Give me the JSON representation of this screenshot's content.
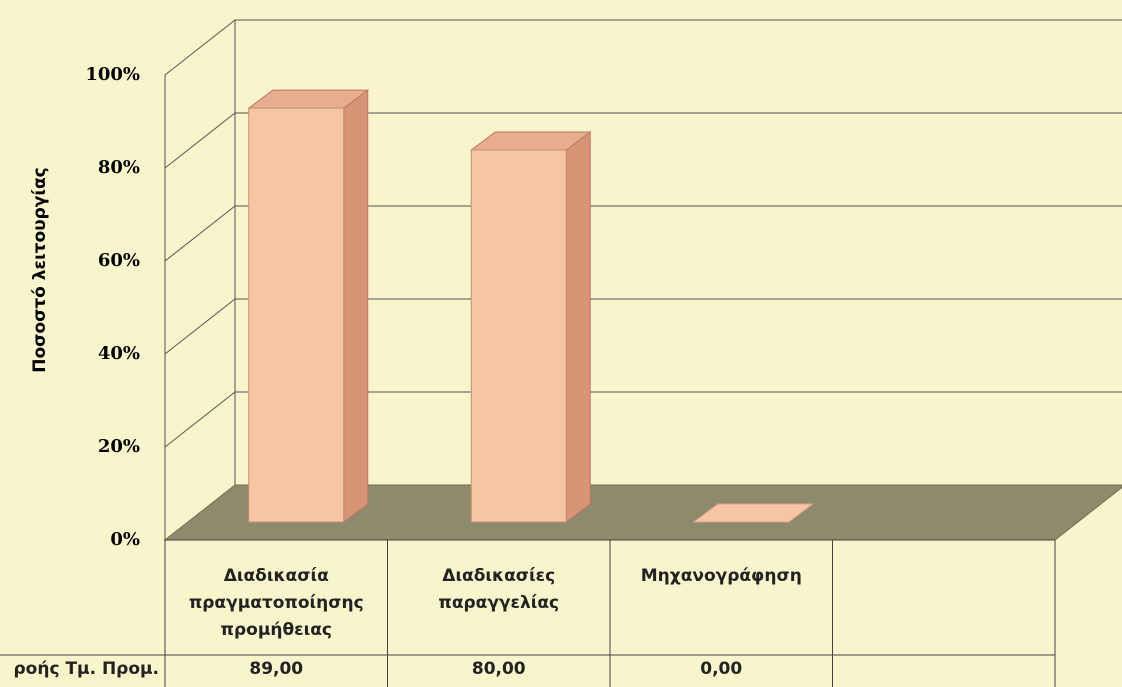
{
  "chart_data": {
    "type": "bar3d",
    "y_axis_label": "Ποσοστό λειτουργίας",
    "categories": [
      "Διαδικασία πραγματοποίησης προμήθειας",
      "Διαδικασίες παραγγελίας",
      "Μηχανογράφηση",
      null
    ],
    "series": [
      {
        "name": "ροής Τμ. Προμ.",
        "color": "#f6c6a4",
        "values": [
          89,
          80,
          0,
          null
        ],
        "value_labels": [
          "89,00",
          "80,00",
          "0,00",
          null
        ]
      }
    ],
    "ylim": [
      0,
      100
    ],
    "yticks": [
      {
        "value": 0,
        "label": "0%"
      },
      {
        "value": 20,
        "label": "20%"
      },
      {
        "value": 40,
        "label": "40%"
      },
      {
        "value": 60,
        "label": "60%"
      },
      {
        "value": 80,
        "label": "80%"
      },
      {
        "value": 100,
        "label": "100%"
      }
    ],
    "grid": true
  }
}
